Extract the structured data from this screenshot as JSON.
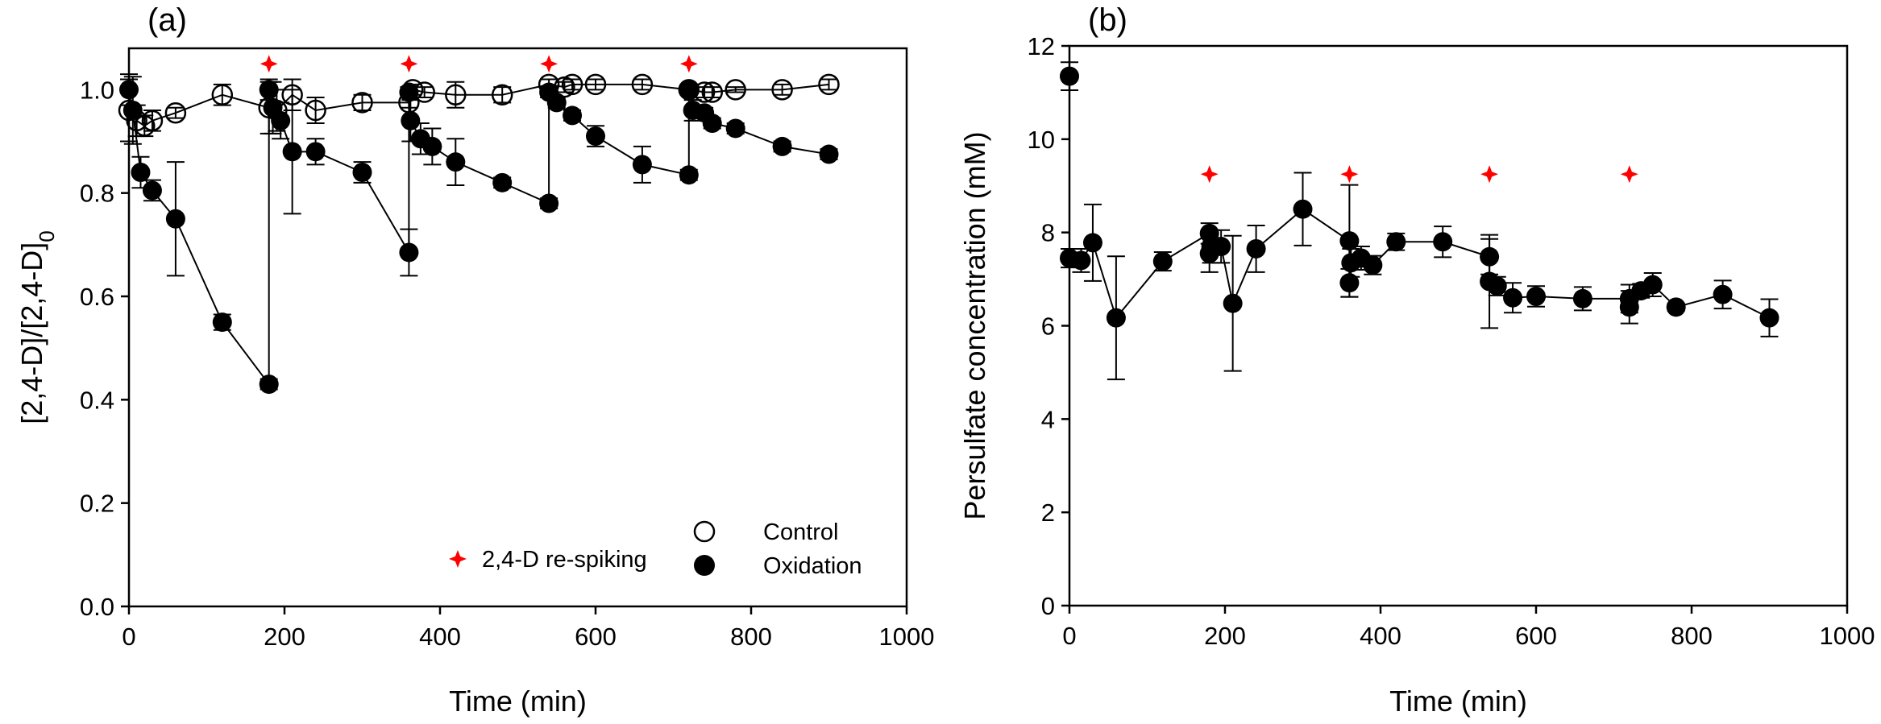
{
  "chart_data": [
    {
      "panel_label": "(a)",
      "type": "scatter",
      "xlabel": "Time (min)",
      "ylabel": "[2,4-D]/[2,4-D]",
      "ylabel_subscript": "0",
      "xlim": [
        0,
        1000
      ],
      "ylim": [
        0,
        1.08
      ],
      "xticks": [
        0,
        200,
        400,
        600,
        800,
        1000
      ],
      "xtick_labels": [
        "0",
        "200",
        "400",
        "600",
        "800",
        "1000"
      ],
      "yticks": [
        0,
        0.2,
        0.4,
        0.6,
        0.8,
        1.0
      ],
      "ytick_labels": [
        "0.0",
        "0.2",
        "0.4",
        "0.6",
        "0.8",
        "1.0"
      ],
      "grid": false,
      "legend": {
        "placement": "bottom-right",
        "entries": [
          {
            "label": "Control",
            "marker": "open-circle"
          },
          {
            "label": "Oxidation",
            "marker": "filled-circle"
          },
          {
            "label": "2,4-D re-spiking",
            "marker": "red-star"
          }
        ]
      },
      "respiking_times": [
        180,
        360,
        540,
        720
      ],
      "respiking_marker_y": 1.05,
      "series": [
        {
          "name": "Control",
          "marker": "open-circle",
          "points": [
            {
              "x": 0,
              "y": 0.96,
              "err": 0.06
            },
            {
              "x": 10,
              "y": 0.94,
              "err": 0.03
            },
            {
              "x": 20,
              "y": 0.93,
              "err": 0.02
            },
            {
              "x": 30,
              "y": 0.94,
              "err": 0.02
            },
            {
              "x": 60,
              "y": 0.955,
              "err": 0.01
            },
            {
              "x": 120,
              "y": 0.99,
              "err": 0.02
            },
            {
              "x": 180,
              "y": 0.965,
              "err": 0.05
            },
            {
              "x": 190,
              "y": 0.96,
              "err": 0.04
            },
            {
              "x": 210,
              "y": 0.99,
              "err": 0.03
            },
            {
              "x": 240,
              "y": 0.96,
              "err": 0.025
            },
            {
              "x": 300,
              "y": 0.975,
              "err": 0.015
            },
            {
              "x": 360,
              "y": 0.975,
              "err": 0.01
            },
            {
              "x": 365,
              "y": 1.0,
              "err": 0.01
            },
            {
              "x": 380,
              "y": 0.995,
              "err": 0.01
            },
            {
              "x": 420,
              "y": 0.99,
              "err": 0.025
            },
            {
              "x": 480,
              "y": 0.99,
              "err": 0.015
            },
            {
              "x": 540,
              "y": 1.01,
              "err": 0.01
            },
            {
              "x": 560,
              "y": 1.005,
              "err": 0.01
            },
            {
              "x": 570,
              "y": 1.01,
              "err": 0.01
            },
            {
              "x": 600,
              "y": 1.01,
              "err": 0.01
            },
            {
              "x": 660,
              "y": 1.01,
              "err": 0.01
            },
            {
              "x": 720,
              "y": 1.0,
              "err": 0.01
            },
            {
              "x": 740,
              "y": 0.995,
              "err": 0.01
            },
            {
              "x": 750,
              "y": 0.995,
              "err": 0.01
            },
            {
              "x": 780,
              "y": 1.0,
              "err": 0.005
            },
            {
              "x": 840,
              "y": 1.0,
              "err": 0.01
            },
            {
              "x": 900,
              "y": 1.01,
              "err": 0.01
            }
          ]
        },
        {
          "name": "Oxidation",
          "marker": "filled-circle",
          "segments": [
            [
              {
                "x": 0,
                "y": 1.0,
                "err": 0.03
              },
              {
                "x": 5,
                "y": 0.96,
                "err": 0.065
              },
              {
                "x": 15,
                "y": 0.84,
                "err": 0.03
              },
              {
                "x": 30,
                "y": 0.805,
                "err": 0.02
              },
              {
                "x": 60,
                "y": 0.75,
                "err": 0.11
              },
              {
                "x": 120,
                "y": 0.55,
                "err": 0.015
              },
              {
                "x": 180,
                "y": 0.43,
                "err": 0.01
              }
            ],
            [
              {
                "x": 180,
                "y": 1.0,
                "err": 0.02
              },
              {
                "x": 185,
                "y": 0.965,
                "err": 0.05
              },
              {
                "x": 195,
                "y": 0.94,
                "err": 0.035
              },
              {
                "x": 210,
                "y": 0.88,
                "err": 0.12
              },
              {
                "x": 240,
                "y": 0.88,
                "err": 0.025
              },
              {
                "x": 300,
                "y": 0.84,
                "err": 0.02
              },
              {
                "x": 360,
                "y": 0.685,
                "err": 0.045
              }
            ],
            [
              {
                "x": 360,
                "y": 0.995,
                "err": 0.01
              },
              {
                "x": 362,
                "y": 0.94,
                "err": 0.04
              },
              {
                "x": 375,
                "y": 0.905,
                "err": 0.03
              },
              {
                "x": 390,
                "y": 0.89,
                "err": 0.035
              },
              {
                "x": 420,
                "y": 0.86,
                "err": 0.045
              },
              {
                "x": 480,
                "y": 0.82,
                "err": 0.01
              },
              {
                "x": 540,
                "y": 0.78,
                "err": 0.01
              }
            ],
            [
              {
                "x": 540,
                "y": 0.995,
                "err": 0.01
              },
              {
                "x": 550,
                "y": 0.975,
                "err": 0.01
              },
              {
                "x": 570,
                "y": 0.95,
                "err": 0.01
              },
              {
                "x": 600,
                "y": 0.91,
                "err": 0.02
              },
              {
                "x": 660,
                "y": 0.855,
                "err": 0.035
              },
              {
                "x": 720,
                "y": 0.835,
                "err": 0.01
              }
            ],
            [
              {
                "x": 720,
                "y": 1.0,
                "err": 0.01
              },
              {
                "x": 725,
                "y": 0.96,
                "err": 0.02
              },
              {
                "x": 740,
                "y": 0.955,
                "err": 0.01
              },
              {
                "x": 750,
                "y": 0.935,
                "err": 0.01
              },
              {
                "x": 780,
                "y": 0.925,
                "err": 0.01
              },
              {
                "x": 840,
                "y": 0.89,
                "err": 0.01
              },
              {
                "x": 900,
                "y": 0.875,
                "err": 0.01
              }
            ]
          ]
        }
      ]
    },
    {
      "panel_label": "(b)",
      "type": "scatter",
      "xlabel": "Time (min)",
      "ylabel": "Persulfate concentration (mM)",
      "xlim": [
        0,
        1000
      ],
      "ylim": [
        0,
        12
      ],
      "xticks": [
        0,
        200,
        400,
        600,
        800,
        1000
      ],
      "xtick_labels": [
        "0",
        "200",
        "400",
        "600",
        "800",
        "1000"
      ],
      "yticks": [
        0,
        2,
        4,
        6,
        8,
        10,
        12
      ],
      "ytick_labels": [
        "0",
        "2",
        "4",
        "6",
        "8",
        "10",
        "12"
      ],
      "grid": false,
      "respiking_times": [
        180,
        360,
        540,
        720
      ],
      "respiking_marker_y": 9.25,
      "series": [
        {
          "name": "Persulfate",
          "marker": "filled-circle",
          "points": [
            {
              "x": 0,
              "y": 11.35,
              "err": 0.3
            },
            {
              "x": 0,
              "y": 7.45,
              "err": 0.2
            },
            {
              "x": 15,
              "y": 7.4,
              "err": 0.25
            },
            {
              "x": 30,
              "y": 7.78,
              "err": 0.82
            },
            {
              "x": 60,
              "y": 6.17,
              "err": 1.32
            },
            {
              "x": 120,
              "y": 7.38,
              "err": 0.2
            },
            {
              "x": 180,
              "y": 7.98,
              "err": 0.22
            },
            {
              "x": 180,
              "y": 7.55,
              "err": 0.4
            },
            {
              "x": 182,
              "y": 7.7,
              "err": 0.35
            },
            {
              "x": 195,
              "y": 7.7,
              "err": 0.35
            },
            {
              "x": 210,
              "y": 6.48,
              "err": 1.45
            },
            {
              "x": 240,
              "y": 7.65,
              "err": 0.5
            },
            {
              "x": 300,
              "y": 8.5,
              "err": 0.78
            },
            {
              "x": 360,
              "y": 7.82,
              "err": 1.2
            },
            {
              "x": 360,
              "y": 6.92,
              "err": 0.3
            },
            {
              "x": 362,
              "y": 7.35,
              "err": 0.3
            },
            {
              "x": 375,
              "y": 7.45,
              "err": 0.25
            },
            {
              "x": 390,
              "y": 7.3,
              "err": 0.2
            },
            {
              "x": 420,
              "y": 7.8,
              "err": 0.18
            },
            {
              "x": 480,
              "y": 7.8,
              "err": 0.33
            },
            {
              "x": 540,
              "y": 7.48,
              "err": 0.38
            },
            {
              "x": 540,
              "y": 6.95,
              "err": 1.0
            },
            {
              "x": 550,
              "y": 6.85,
              "err": 0.2
            },
            {
              "x": 570,
              "y": 6.6,
              "err": 0.32
            },
            {
              "x": 600,
              "y": 6.63,
              "err": 0.22
            },
            {
              "x": 660,
              "y": 6.58,
              "err": 0.25
            },
            {
              "x": 720,
              "y": 6.58,
              "err": 0.3
            },
            {
              "x": 720,
              "y": 6.4,
              "err": 0.35
            },
            {
              "x": 735,
              "y": 6.75,
              "err": 0.15
            },
            {
              "x": 750,
              "y": 6.88,
              "err": 0.25
            },
            {
              "x": 780,
              "y": 6.4,
              "err": 0.08
            },
            {
              "x": 840,
              "y": 6.67,
              "err": 0.3
            },
            {
              "x": 900,
              "y": 6.17,
              "err": 0.4
            }
          ],
          "line_order": [
            0,
            1,
            2,
            3,
            4,
            5,
            6,
            7,
            8,
            9,
            10,
            11,
            12,
            13,
            14,
            15,
            16,
            17,
            18,
            19,
            20,
            21,
            22,
            23,
            24,
            25,
            26,
            27,
            28,
            29,
            30,
            31,
            32
          ]
        }
      ]
    }
  ],
  "colors": {
    "respike_marker": "#ff0000",
    "axes": "#000000",
    "marker_fill": "#000000"
  }
}
